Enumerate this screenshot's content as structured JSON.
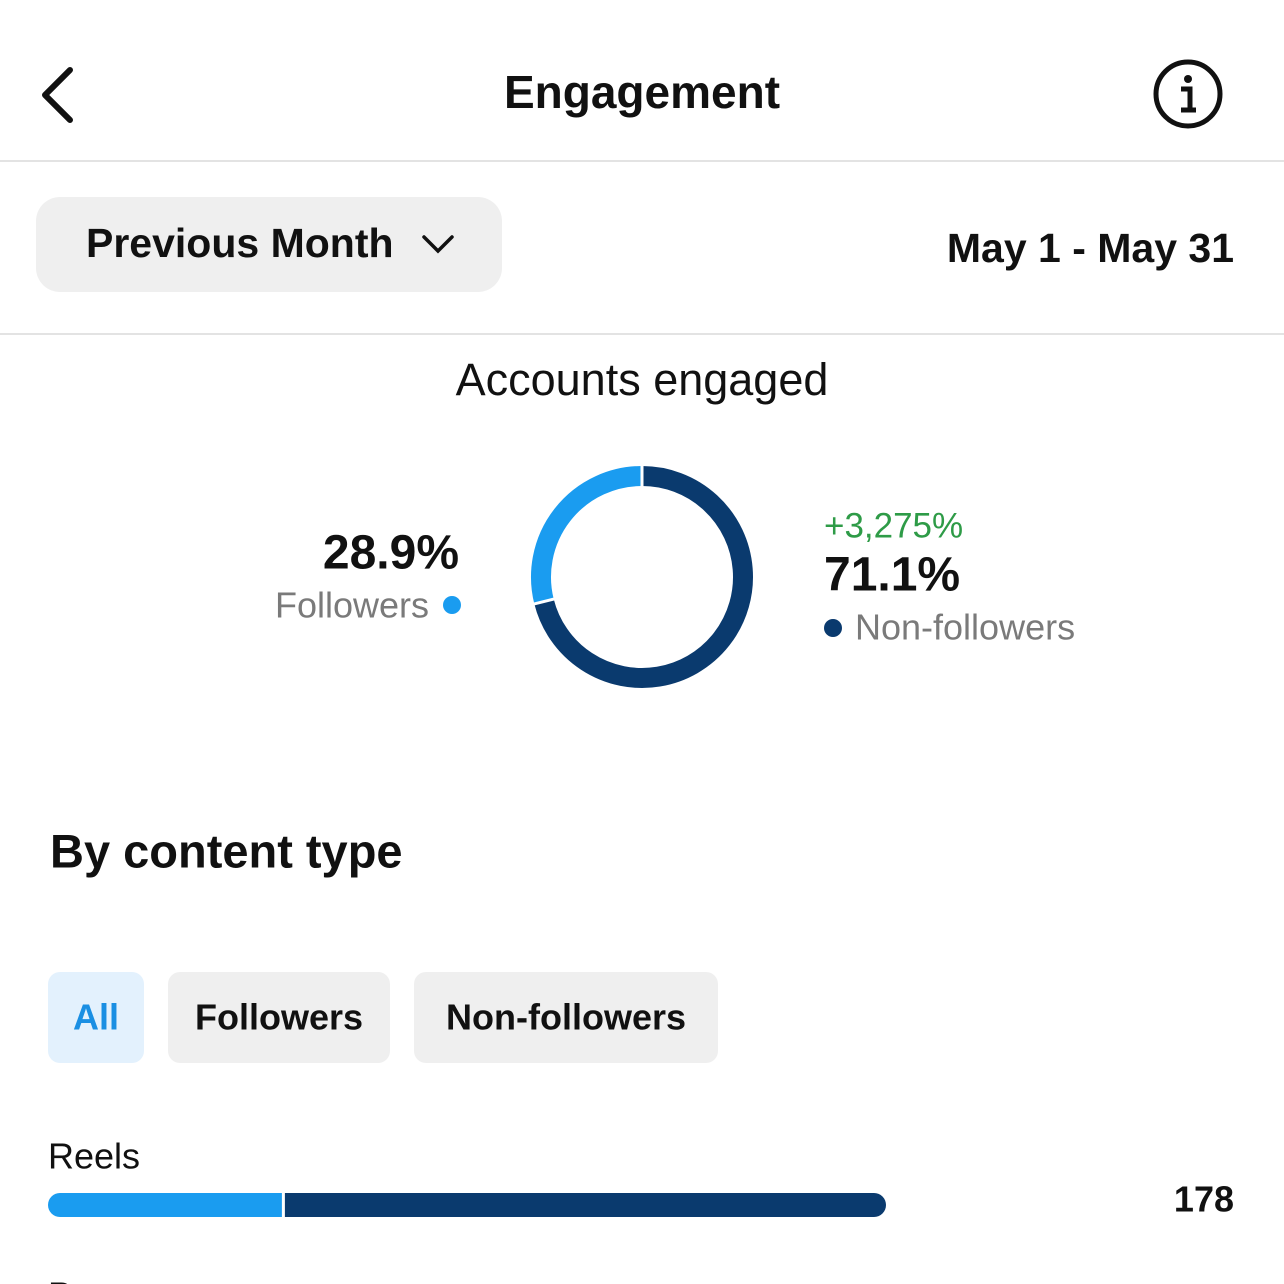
{
  "header": {
    "title": "Engagement"
  },
  "filter": {
    "period": "Previous Month",
    "date_range": "May 1 - May 31"
  },
  "accounts_engaged": {
    "title": "Accounts engaged",
    "segments": [
      {
        "name": "Followers",
        "value": 28.9,
        "value_label": "28.9%",
        "color": "#1a9cf0"
      },
      {
        "name": "Non-followers",
        "value": 71.1,
        "value_label": "71.1%",
        "color": "#0a3a6e",
        "change": "+3,275%"
      }
    ]
  },
  "content_type": {
    "title": "By content type",
    "tabs": [
      "All",
      "Followers",
      "Non-followers"
    ],
    "rows": [
      {
        "label": "Reels",
        "total": 178,
        "segments": [
          {
            "name": "Followers",
            "value": 50,
            "color": "#1a9cf0"
          },
          {
            "name": "Non-followers",
            "value": 128,
            "color": "#0a3a6e"
          }
        ]
      },
      {
        "label": "Posts"
      }
    ]
  }
}
